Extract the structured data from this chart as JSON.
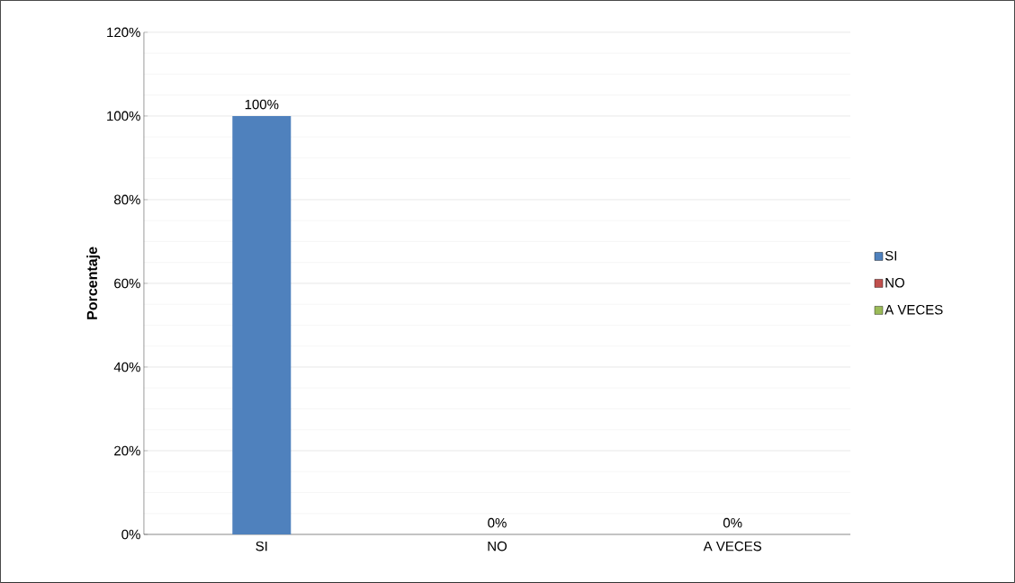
{
  "chart_data": {
    "type": "bar",
    "ylabel": "Porcentaje",
    "categories": [
      "SI",
      "NO",
      "A VECES"
    ],
    "series": [
      {
        "name": "SI",
        "color": "#4f81bd",
        "values": [
          100,
          null,
          null
        ],
        "value_labels": [
          "100%",
          null,
          null
        ]
      },
      {
        "name": "NO",
        "color": "#c0504d",
        "values": [
          null,
          0,
          null
        ],
        "value_labels": [
          null,
          "0%",
          null
        ]
      },
      {
        "name": "A VECES",
        "color": "#9bbb59",
        "values": [
          null,
          null,
          0
        ],
        "value_labels": [
          null,
          null,
          "0%"
        ]
      }
    ],
    "ylim": [
      0,
      120
    ],
    "yticks": [
      {
        "value": 0,
        "label": "0%"
      },
      {
        "value": 20,
        "label": "20%"
      },
      {
        "value": 40,
        "label": "40%"
      },
      {
        "value": 60,
        "label": "60%"
      },
      {
        "value": 80,
        "label": "80%"
      },
      {
        "value": 100,
        "label": "100%"
      },
      {
        "value": 120,
        "label": "120%"
      }
    ],
    "grid": "y",
    "legend": "right"
  }
}
